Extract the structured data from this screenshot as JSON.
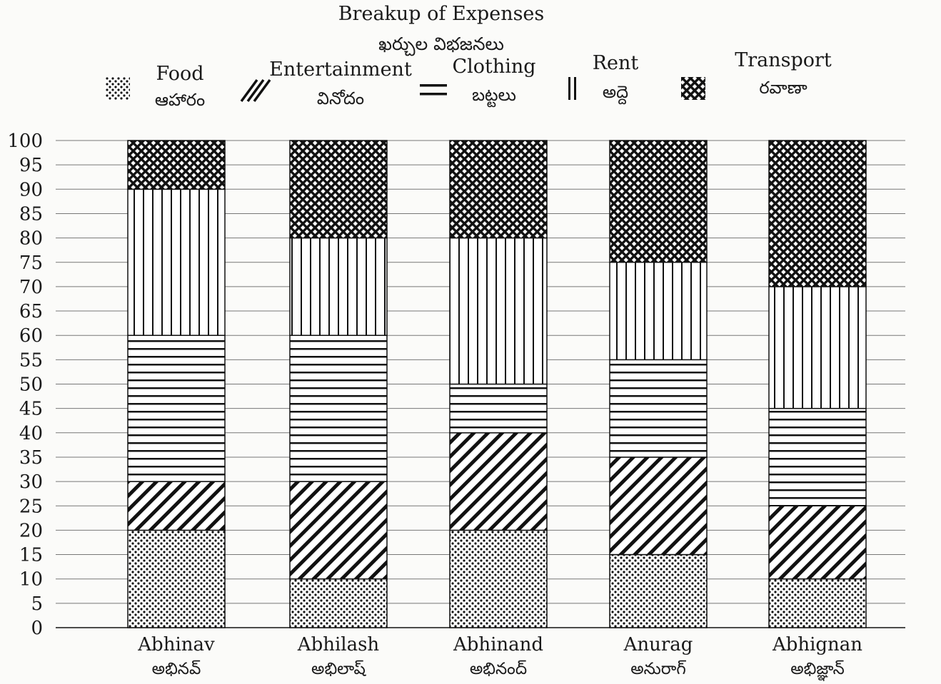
{
  "chart_data": {
    "type": "bar",
    "stacked": true,
    "title": "Breakup of Expenses",
    "subtitle": "ఖర్చుల విభజనలు",
    "ylim": [
      0,
      100
    ],
    "yticks": [
      0,
      5,
      10,
      15,
      20,
      25,
      30,
      35,
      40,
      45,
      50,
      55,
      60,
      65,
      70,
      75,
      80,
      85,
      90,
      95,
      100
    ],
    "grid": true,
    "legend_position": "top",
    "categories": [
      {
        "name": "Abhinav",
        "name_te": "అభినవ్"
      },
      {
        "name": "Abhilash",
        "name_te": "అభిలాష్"
      },
      {
        "name": "Abhinand",
        "name_te": "అభినంద్"
      },
      {
        "name": "Anurag",
        "name_te": "అనురాగ్"
      },
      {
        "name": "Abhignan",
        "name_te": "అభిజ్ఞాన్"
      }
    ],
    "series": [
      {
        "name": "Food",
        "name_te": "ఆహారం",
        "pattern": "dots",
        "values": [
          20,
          10,
          20,
          15,
          10
        ]
      },
      {
        "name": "Entertainment",
        "name_te": "వినోదం",
        "pattern": "diagonal",
        "values": [
          10,
          20,
          20,
          20,
          15
        ]
      },
      {
        "name": "Clothing",
        "name_te": "బట్టలు",
        "pattern": "horizontal",
        "values": [
          30,
          30,
          10,
          20,
          20
        ]
      },
      {
        "name": "Rent",
        "name_te": "అద్దె",
        "pattern": "vertical",
        "values": [
          30,
          20,
          30,
          20,
          25
        ]
      },
      {
        "name": "Transport",
        "name_te": "రవాణా",
        "pattern": "crosshatch",
        "values": [
          10,
          20,
          20,
          25,
          30
        ]
      }
    ]
  }
}
